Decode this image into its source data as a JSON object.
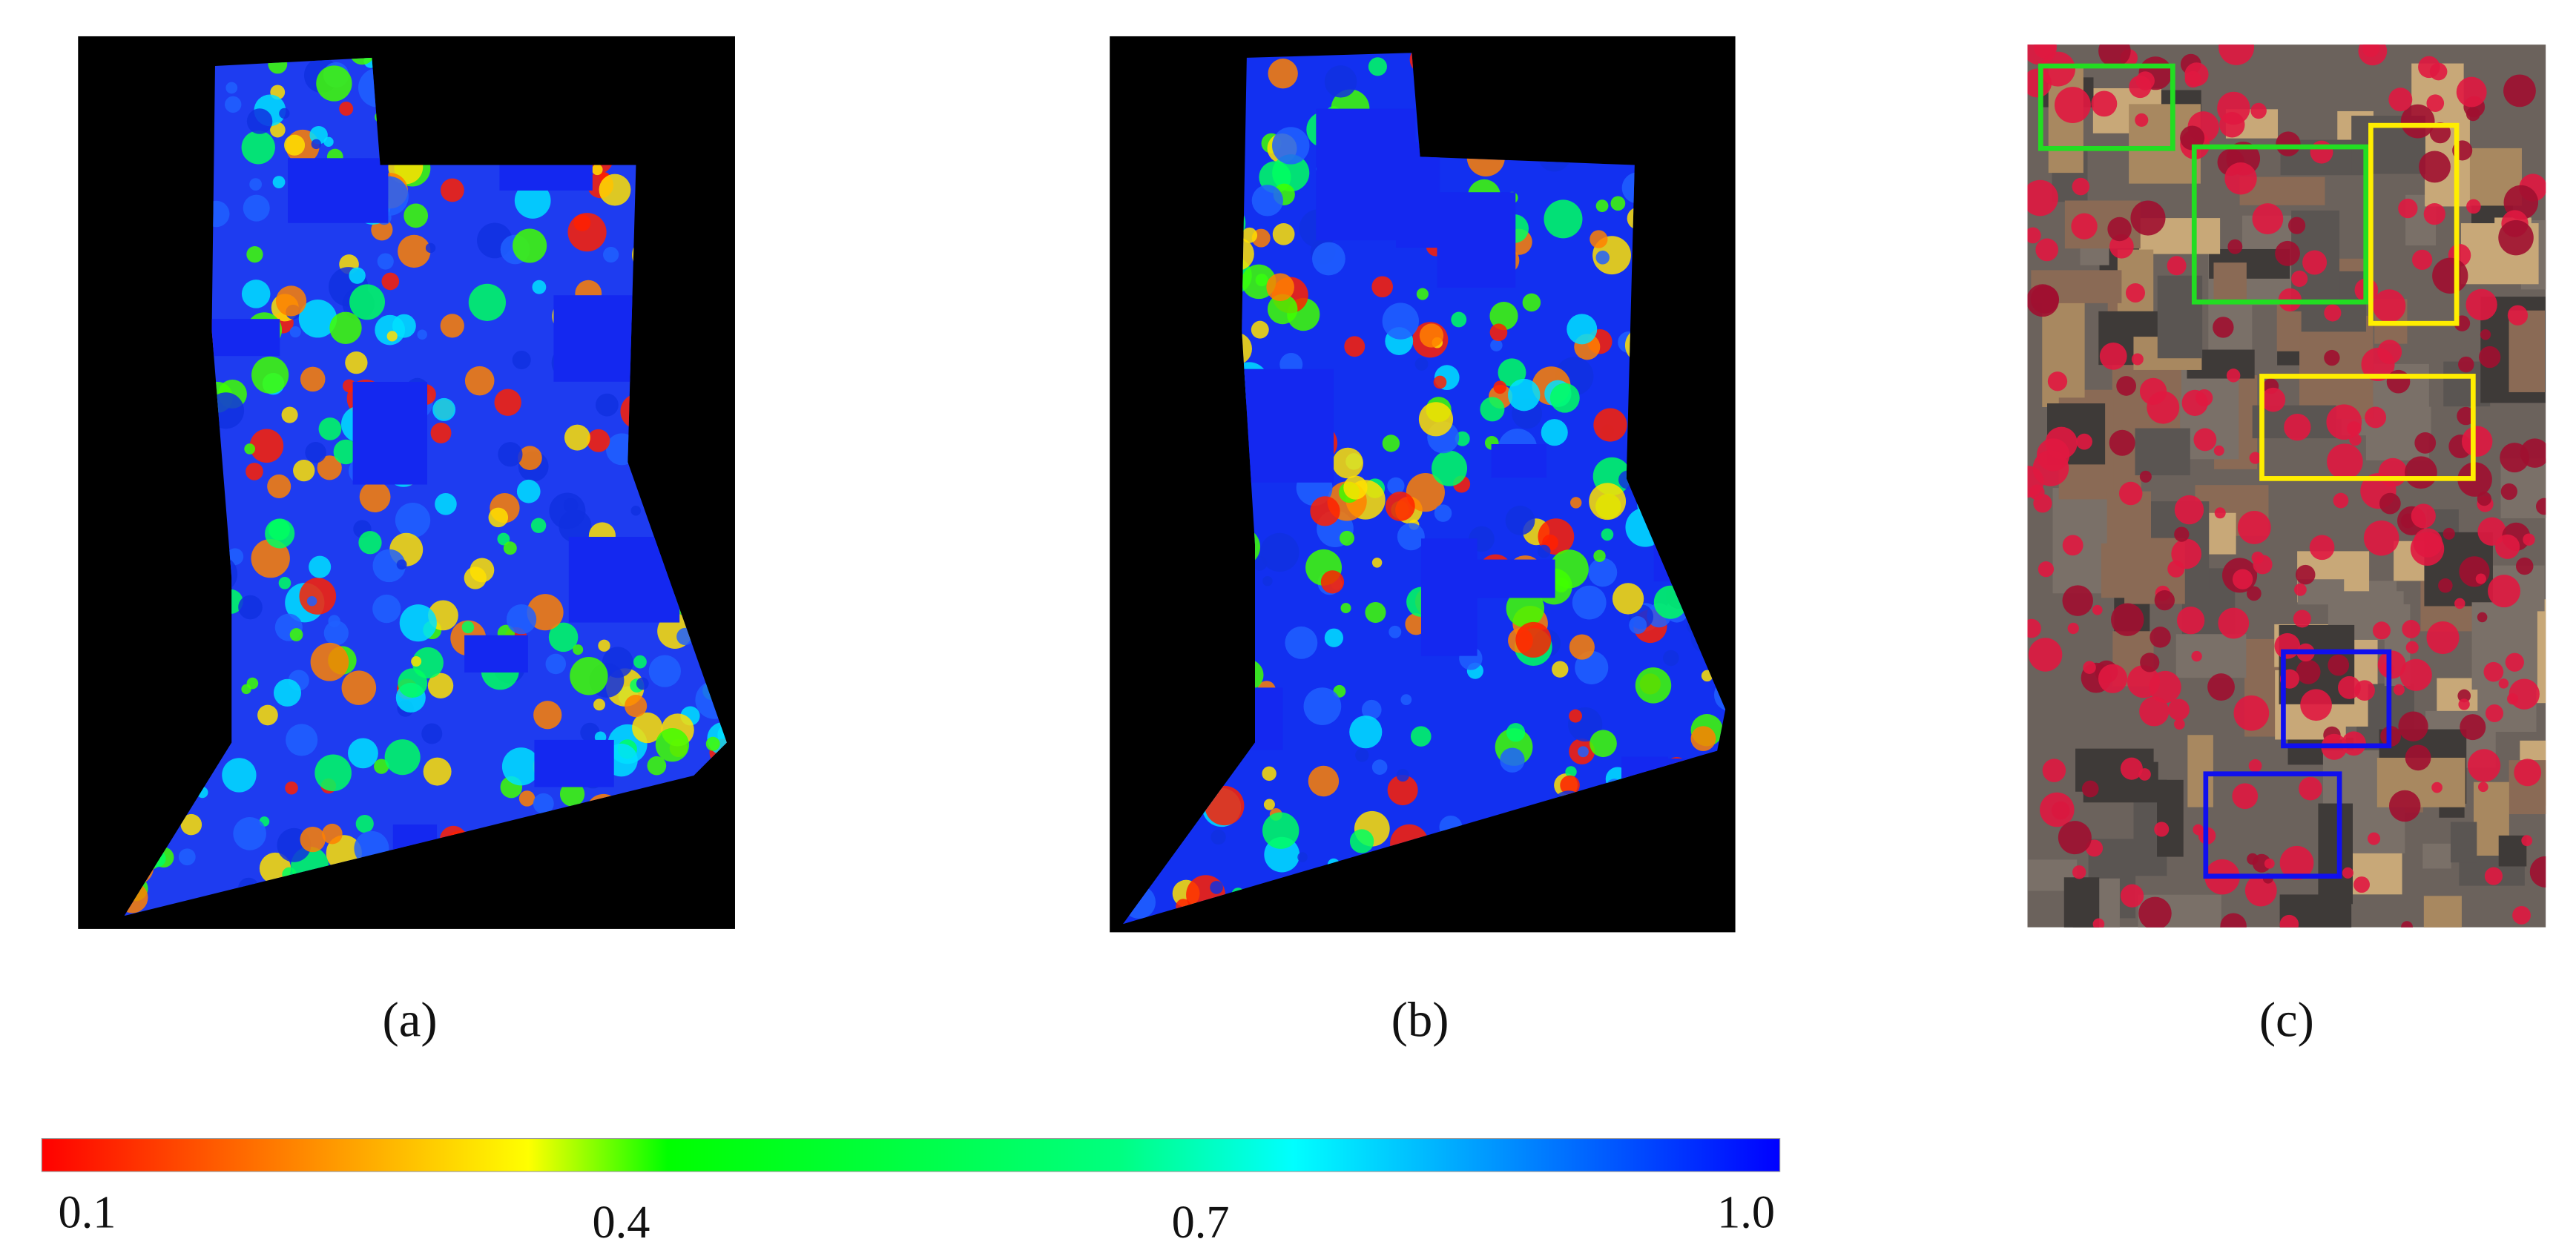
{
  "panels": [
    {
      "label": "(a)"
    },
    {
      "label": "(b)"
    },
    {
      "label": "(c)"
    }
  ],
  "colorbar": {
    "lim": [
      0.1,
      1.0
    ],
    "ticks": [
      0.1,
      0.4,
      0.7,
      {
        "value": 1.0,
        "label": "1.0"
      }
    ]
  }
}
